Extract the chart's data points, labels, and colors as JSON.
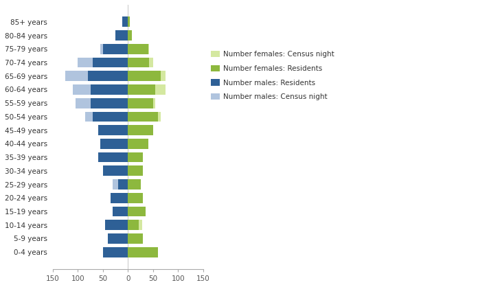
{
  "age_groups": [
    "0-4 years",
    "5-9 years",
    "10-14 years",
    "15-19 years",
    "20-24 years",
    "25-29 years",
    "30-34 years",
    "35-39 years",
    "40-44 years",
    "45-49 years",
    "50-54 years",
    "55-59 years",
    "60-64 years",
    "65-69 years",
    "70-74 years",
    "75-79 years",
    "80-84 years",
    "85+ years"
  ],
  "males_residents": [
    50,
    40,
    45,
    30,
    35,
    20,
    50,
    60,
    55,
    60,
    70,
    75,
    75,
    80,
    70,
    50,
    25,
    12
  ],
  "males_census": [
    50,
    0,
    40,
    0,
    0,
    30,
    50,
    0,
    28,
    45,
    85,
    105,
    110,
    125,
    100,
    55,
    0,
    0
  ],
  "females_residents": [
    60,
    30,
    22,
    35,
    30,
    25,
    30,
    30,
    40,
    50,
    60,
    50,
    55,
    65,
    42,
    40,
    8,
    4
  ],
  "females_census": [
    22,
    0,
    28,
    35,
    0,
    18,
    28,
    30,
    28,
    42,
    65,
    55,
    75,
    75,
    50,
    42,
    0,
    0
  ],
  "color_males_residents": "#2E6096",
  "color_males_census": "#B0C4DE",
  "color_females_residents": "#8DB83E",
  "color_females_census": "#D4E8A0",
  "legend_labels": [
    "Number females: Census night",
    "Number females: Residents",
    "Number males: Residents",
    "Number males: Census night"
  ],
  "xlim": [
    -150,
    150
  ],
  "xticks": [
    -150,
    -100,
    -50,
    0,
    50,
    100,
    150
  ],
  "xticklabels": [
    "150",
    "100",
    "50",
    "0",
    "50",
    "100",
    "150"
  ],
  "figsize": [
    6.96,
    4.18
  ],
  "dpi": 100
}
